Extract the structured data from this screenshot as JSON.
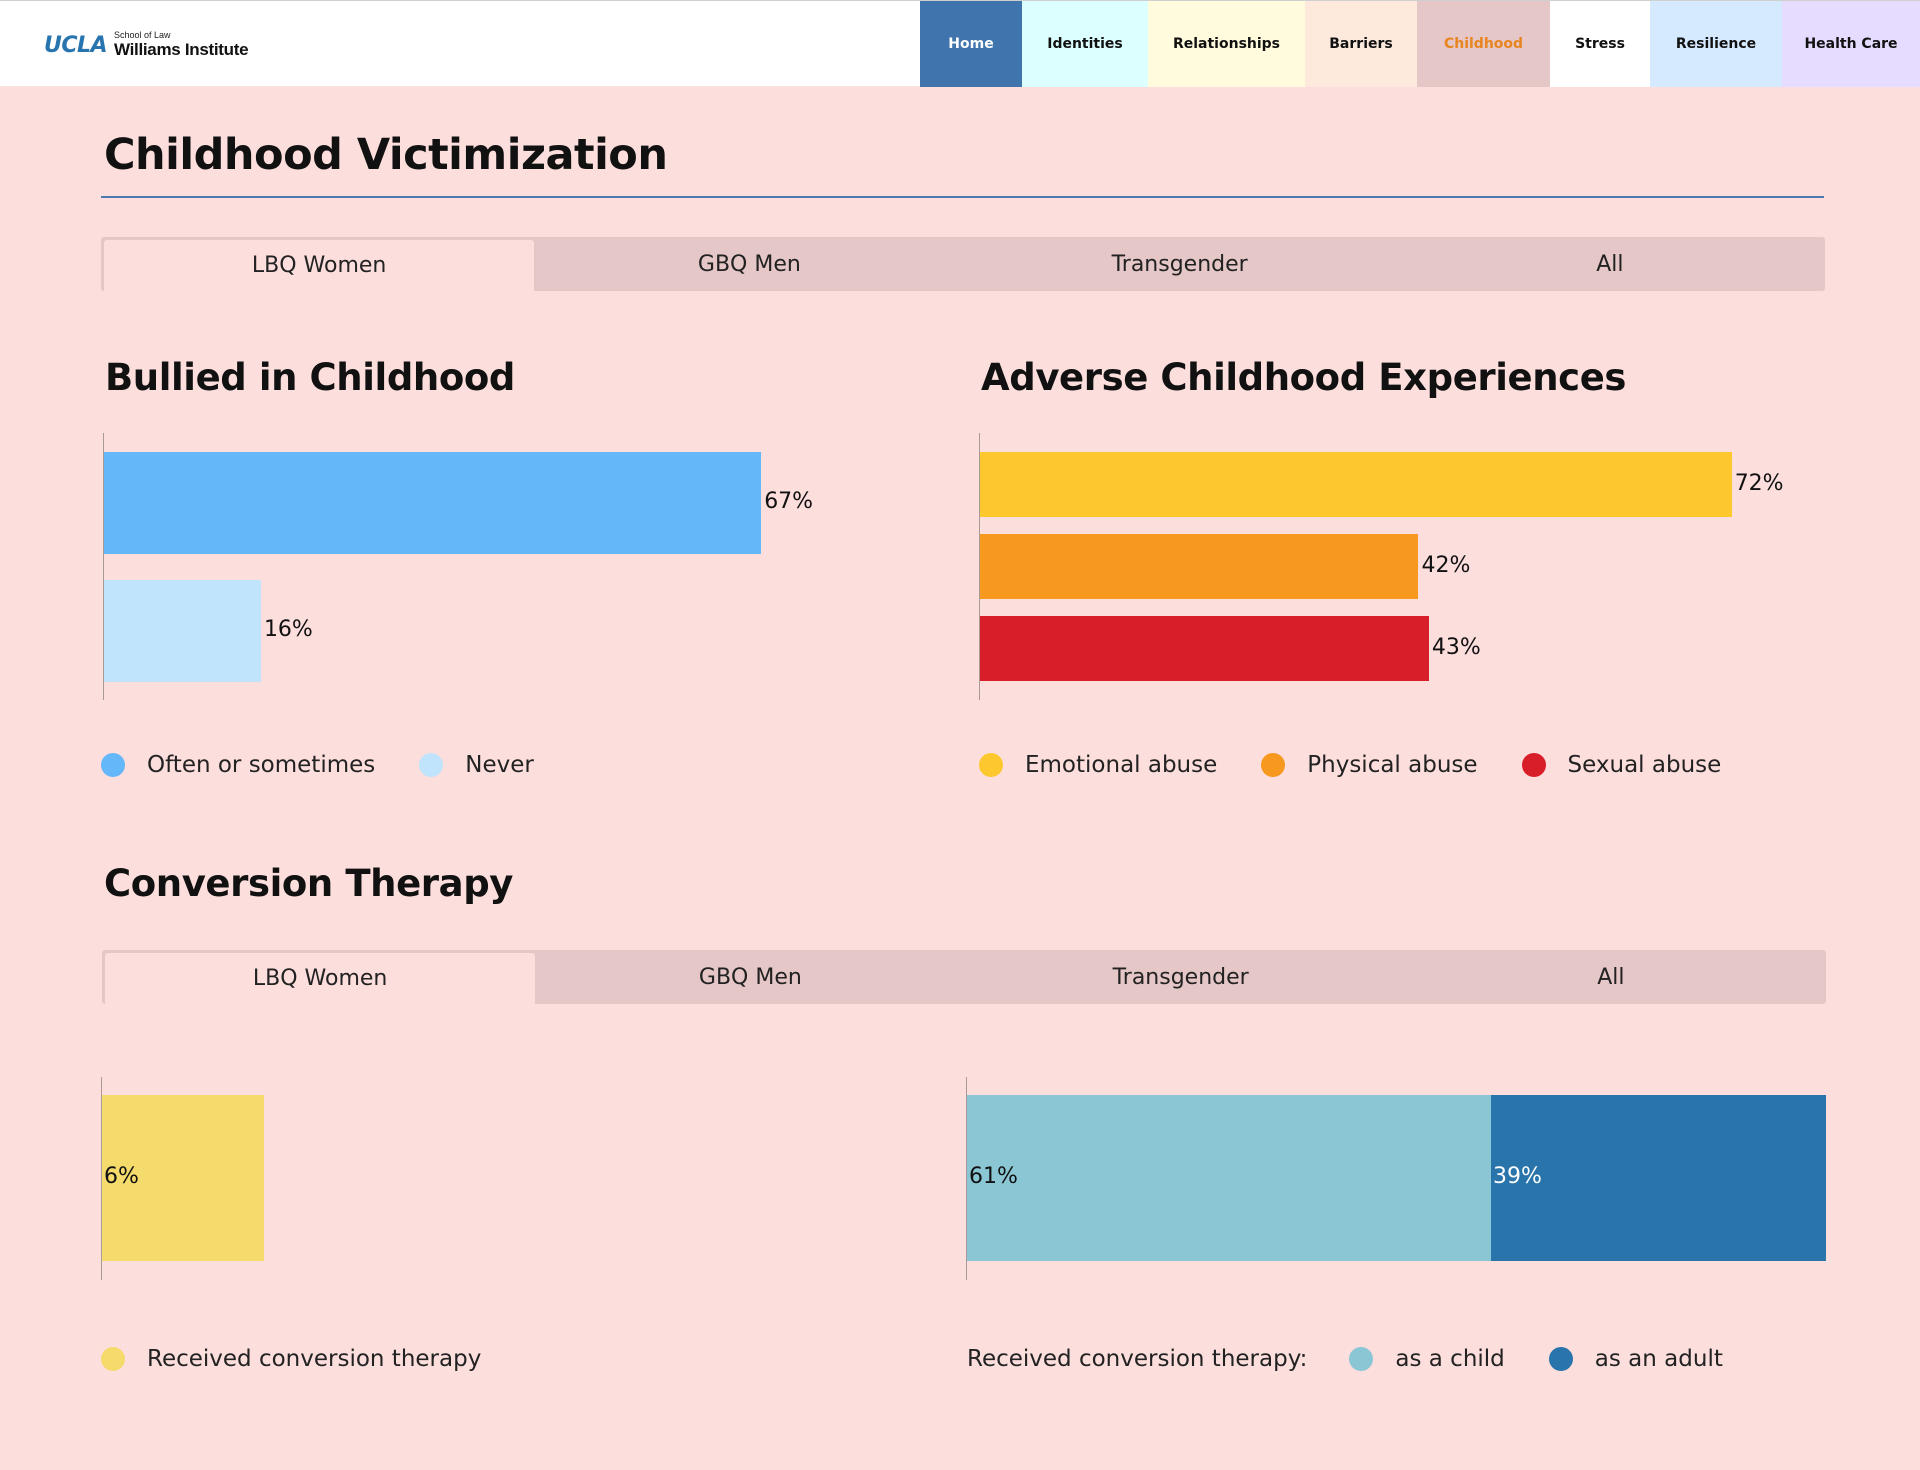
{
  "header": {
    "logo": {
      "ucla": "UCLA",
      "school": "School of Law",
      "institute": "Williams Institute"
    },
    "nav": [
      {
        "label": "Home",
        "bg": "#3f74ad",
        "width": 102,
        "active": false
      },
      {
        "label": "Identities",
        "bg": "#dcffff",
        "width": 126,
        "active": false
      },
      {
        "label": "Relationships",
        "bg": "#fffbdc",
        "width": 157,
        "active": false
      },
      {
        "label": "Barriers",
        "bg": "#fdeadd",
        "width": 112,
        "active": false
      },
      {
        "label": "Childhood",
        "bg": "#e4c7c6",
        "width": 133,
        "active": true
      },
      {
        "label": "Stress",
        "bg": "#ffffff",
        "width": 100,
        "active": false
      },
      {
        "label": "Resilience",
        "bg": "#d6eaff",
        "width": 132,
        "active": false
      },
      {
        "label": "Health Care",
        "bg": "#e6dcff",
        "width": 138,
        "active": false
      }
    ]
  },
  "page_title": "Childhood Victimization",
  "tabs_top": [
    "LBQ Women",
    "GBQ Men",
    "Transgender",
    "All"
  ],
  "tabs_bottom": [
    "LBQ Women",
    "GBQ Men",
    "Transgender",
    "All"
  ],
  "sections": {
    "bullied_title": "Bullied in Childhood",
    "ace_title": "Adverse Childhood Experiences",
    "conversion_title": "Conversion Therapy"
  },
  "legends": {
    "bullied": [
      {
        "label": "Often or sometimes",
        "color": "#64b8f9"
      },
      {
        "label": "Never",
        "color": "#bfe4fc"
      }
    ],
    "ace": [
      {
        "label": "Emotional abuse",
        "color": "#fdc82d"
      },
      {
        "label": "Physical abuse",
        "color": "#f7981f"
      },
      {
        "label": "Sexual abuse",
        "color": "#d81f29"
      }
    ],
    "conversion": [
      {
        "label": "Received conversion therapy",
        "color": "#f5db6c"
      }
    ],
    "conversion_age_prefix": "Received conversion therapy:",
    "conversion_age": [
      {
        "label": "as a child",
        "color": "#8bc6d5"
      },
      {
        "label": "as an adult",
        "color": "#2874ab"
      }
    ]
  },
  "chart_data": [
    {
      "type": "bar",
      "orientation": "horizontal",
      "title": "Bullied in Childhood",
      "categories": [
        "Often or sometimes",
        "Never"
      ],
      "values": [
        67,
        16
      ],
      "labels": [
        "67%",
        "16%"
      ],
      "colors": [
        "#64b8f9",
        "#bfe4fc"
      ],
      "xlim": [
        0,
        78.5
      ]
    },
    {
      "type": "bar",
      "orientation": "horizontal",
      "title": "Adverse Childhood Experiences",
      "categories": [
        "Emotional abuse",
        "Physical abuse",
        "Sexual abuse"
      ],
      "values": [
        72,
        42,
        43
      ],
      "labels": [
        "72%",
        "42%",
        "43%"
      ],
      "colors": [
        "#fdc82d",
        "#f7981f",
        "#d81f29"
      ],
      "xlim": [
        0,
        79.5
      ]
    },
    {
      "type": "bar",
      "orientation": "horizontal",
      "title": "Conversion Therapy",
      "categories": [
        "Received conversion therapy"
      ],
      "values": [
        6
      ],
      "labels": [
        "6%"
      ],
      "colors": [
        "#f5db6c"
      ],
      "xlim": [
        0,
        28.5
      ]
    },
    {
      "type": "bar",
      "orientation": "horizontal",
      "stacked": true,
      "title": "Received conversion therapy:",
      "categories": [
        "as a child",
        "as an adult"
      ],
      "values": [
        61,
        39
      ],
      "labels": [
        "61%",
        "39%"
      ],
      "colors": [
        "#8bc6d5",
        "#2874ab"
      ],
      "label_colors": [
        "#111111",
        "#ffffff"
      ],
      "xlim": [
        0,
        100
      ]
    }
  ]
}
